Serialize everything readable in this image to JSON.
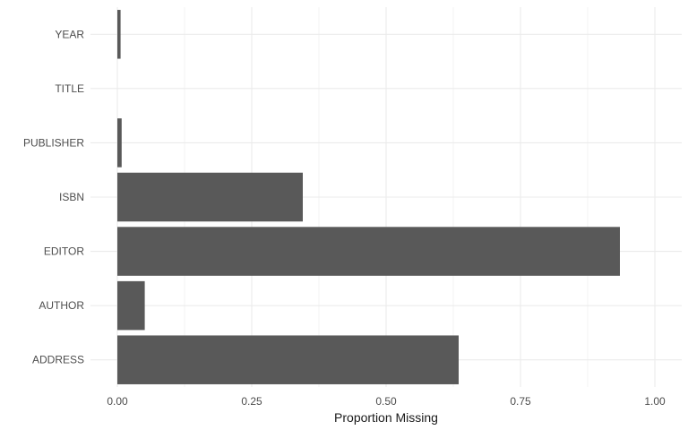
{
  "chart_data": {
    "type": "bar",
    "orientation": "horizontal",
    "categories": [
      "ADDRESS",
      "AUTHOR",
      "EDITOR",
      "ISBN",
      "PUBLISHER",
      "TITLE",
      "YEAR"
    ],
    "values": [
      0.635,
      0.051,
      0.935,
      0.345,
      0.008,
      0.0,
      0.006
    ],
    "xlabel": "Proportion Missing",
    "ylabel": "",
    "xlim": [
      0,
      1
    ],
    "x_ticks": [
      "0.00",
      "0.25",
      "0.50",
      "0.75",
      "1.00"
    ],
    "x_tick_values": [
      0,
      0.25,
      0.5,
      0.75,
      1.0
    ],
    "grid": true,
    "bar_color": "#595959",
    "grid_color": "#ebebeb"
  }
}
